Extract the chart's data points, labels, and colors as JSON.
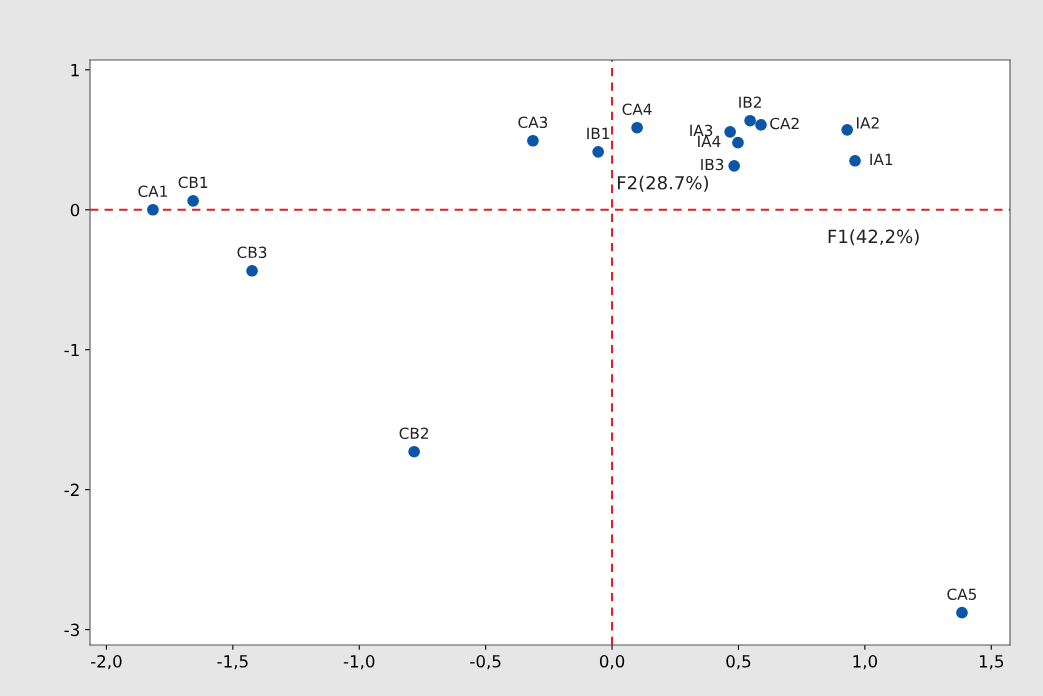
{
  "chart_data": {
    "type": "scatter",
    "x": [
      -1.816,
      -1.657,
      -1.424,
      -0.783,
      -0.313,
      -0.055,
      0.099,
      0.467,
      0.546,
      0.589,
      0.498,
      0.483,
      0.93,
      0.961,
      1.384
    ],
    "series": [
      {
        "color": "#0b56a8",
        "values": [
          0.0,
          0.064,
          -0.436,
          -1.729,
          0.493,
          0.414,
          0.586,
          0.557,
          0.636,
          0.607,
          0.479,
          0.314,
          0.571,
          0.35,
          -2.879
        ]
      }
    ],
    "marker": "circle",
    "annotations": [
      {
        "text": "CA1",
        "x": -1.816,
        "y": 0.0
      },
      {
        "text": "CB1",
        "x": -1.657,
        "y": 0.064
      },
      {
        "text": "CB3",
        "x": -1.424,
        "y": -0.436
      },
      {
        "text": "CB2",
        "x": -0.783,
        "y": -1.729
      },
      {
        "text": "CA3",
        "x": -0.313,
        "y": 0.493
      },
      {
        "text": "IB1",
        "x": -0.055,
        "y": 0.414
      },
      {
        "text": "CA4",
        "x": 0.099,
        "y": 0.586
      },
      {
        "text": "IA3",
        "x": 0.467,
        "y": 0.557
      },
      {
        "text": "IB2",
        "x": 0.546,
        "y": 0.636
      },
      {
        "text": "CA2",
        "x": 0.589,
        "y": 0.607
      },
      {
        "text": "IA4",
        "x": 0.498,
        "y": 0.479
      },
      {
        "text": "IB3",
        "x": 0.483,
        "y": 0.314
      },
      {
        "text": "IA2",
        "x": 0.93,
        "y": 0.571
      },
      {
        "text": "IA1",
        "x": 0.961,
        "y": 0.35
      },
      {
        "text": "CA5",
        "x": 1.384,
        "y": -2.879
      }
    ],
    "ref_lines": [
      {
        "axis": "x",
        "value": 0,
        "label": "F2(28.7%)",
        "color": "#e02020",
        "line_style": "dashed"
      },
      {
        "axis": "y",
        "value": 0,
        "label": "F1(42,2%)",
        "color": "#e02020",
        "line_style": "dashed"
      }
    ],
    "xlim": [
      -2.065,
      1.574
    ],
    "ylim": [
      -3.11,
      1.07
    ],
    "xticks": [
      {
        "value": -2.0,
        "label": "-2,0"
      },
      {
        "value": -1.5,
        "label": "-1,5"
      },
      {
        "value": -1.0,
        "label": "-1,0"
      },
      {
        "value": -0.5,
        "label": "-0,5"
      },
      {
        "value": 0.0,
        "label": "0,0"
      },
      {
        "value": 0.5,
        "label": "0,5"
      },
      {
        "value": 1.0,
        "label": "1,0"
      },
      {
        "value": 1.5,
        "label": "1,5"
      }
    ],
    "yticks": [
      -3,
      -2,
      -1,
      0,
      1
    ],
    "grid": false
  }
}
